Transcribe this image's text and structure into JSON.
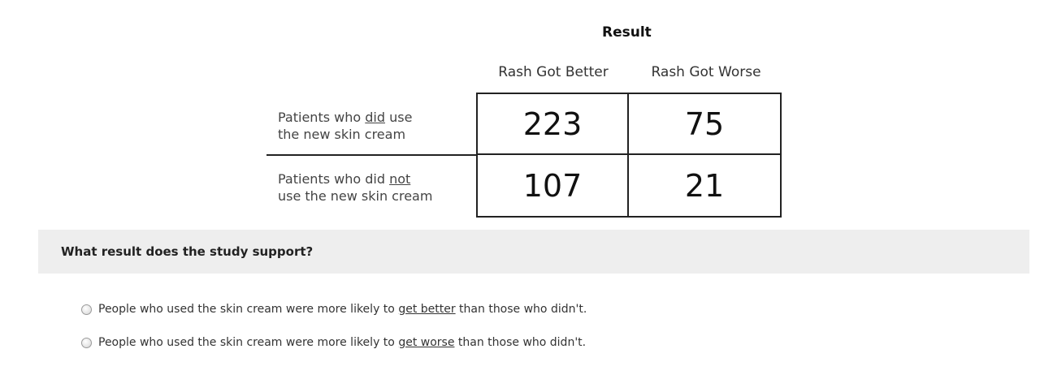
{
  "table": {
    "heading": "Result",
    "columns": [
      "Rash Got Better",
      "Rash Got Worse"
    ],
    "rows": [
      {
        "label_line1_pre": "Patients who ",
        "label_line1_emph": "did",
        "label_line1_post": " use",
        "label_line2": "the new skin cream",
        "values": [
          "223",
          "75"
        ]
      },
      {
        "label_line1_pre": "Patients who did ",
        "label_line1_emph": "not",
        "label_line1_post": "",
        "label_line2": "use the new skin cream",
        "values": [
          "107",
          "21"
        ]
      }
    ]
  },
  "question": {
    "text": "What result does the study support?"
  },
  "options": [
    {
      "pre": "People who used the skin cream were more likely to ",
      "emph": "get better",
      "post": " than those who didn't."
    },
    {
      "pre": "People who used the skin cream were more likely to ",
      "emph": "get worse",
      "post": " than those who didn't."
    }
  ]
}
